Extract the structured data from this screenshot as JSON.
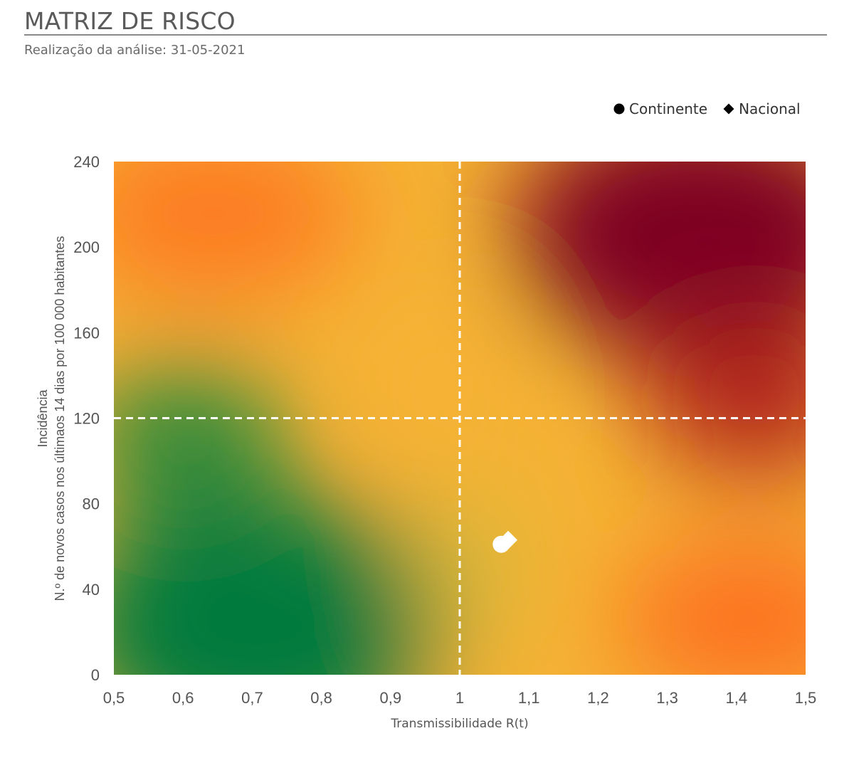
{
  "header": {
    "title": "MATRIZ DE RISCO",
    "subtitle": "Realização da análise: 31-05-2021"
  },
  "chart_data": {
    "type": "scatter",
    "xlabel": "Transmissibilidade R(t)",
    "ylabel_line1": "Incidência",
    "ylabel_line2": "N.º de novos casos nos últimaos 14 dias por 100 000 habitantes",
    "xlim": [
      0.5,
      1.5
    ],
    "ylim": [
      0,
      240
    ],
    "x_ticks": [
      {
        "value": 0.5,
        "label": "0,5"
      },
      {
        "value": 0.6,
        "label": "0,6"
      },
      {
        "value": 0.7,
        "label": "0,7"
      },
      {
        "value": 0.8,
        "label": "0,8"
      },
      {
        "value": 0.9,
        "label": "0,9"
      },
      {
        "value": 1.0,
        "label": "1"
      },
      {
        "value": 1.1,
        "label": "1,1"
      },
      {
        "value": 1.2,
        "label": "1,2"
      },
      {
        "value": 1.3,
        "label": "1,3"
      },
      {
        "value": 1.4,
        "label": "1,4"
      },
      {
        "value": 1.5,
        "label": "1,5"
      }
    ],
    "y_ticks": [
      {
        "value": 0,
        "label": "0"
      },
      {
        "value": 40,
        "label": "40"
      },
      {
        "value": 80,
        "label": "80"
      },
      {
        "value": 120,
        "label": "120"
      },
      {
        "value": 160,
        "label": "160"
      },
      {
        "value": 200,
        "label": "200"
      },
      {
        "value": 240,
        "label": "240"
      }
    ],
    "threshold_lines": {
      "x": 1.0,
      "y": 120
    },
    "legend_position": "top-right",
    "series": [
      {
        "name": "Continente",
        "marker": "circle",
        "points": [
          {
            "x": 1.06,
            "y": 61
          }
        ]
      },
      {
        "name": "Nacional",
        "marker": "diamond",
        "points": [
          {
            "x": 1.07,
            "y": 63
          }
        ]
      }
    ],
    "colors": {
      "green": "#007a3d",
      "yellow": "#f5b234",
      "orange": "#fd7020",
      "dark_red": "#7e0022",
      "marker": "#ffffff",
      "legend_marker": "#000000"
    }
  }
}
